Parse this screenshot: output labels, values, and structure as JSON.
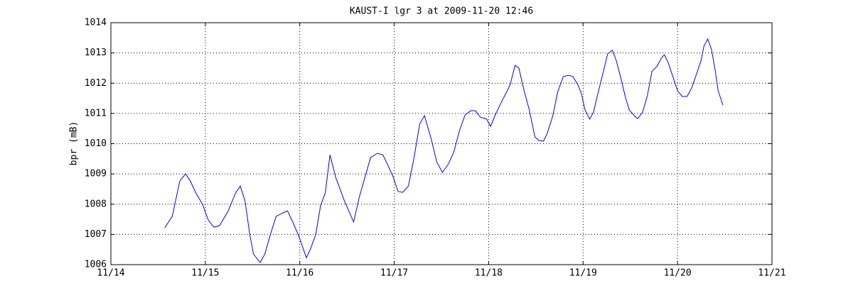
{
  "chart_data": {
    "type": "line",
    "title": "KAUST-I lgr 3 at 2009-11-20 12:46",
    "y_label": "bpr (mB)",
    "xlim": [
      14,
      21
    ],
    "xticks": [
      {
        "value": 14,
        "label": "11/14"
      },
      {
        "value": 15,
        "label": "11/15"
      },
      {
        "value": 16,
        "label": "11/16"
      },
      {
        "value": 17,
        "label": "11/17"
      },
      {
        "value": 18,
        "label": "11/18"
      },
      {
        "value": 19,
        "label": "11/19"
      },
      {
        "value": 20,
        "label": "11/20"
      },
      {
        "value": 21,
        "label": "11/21"
      }
    ],
    "ylim": [
      1006,
      1014
    ],
    "yticks": [
      1006,
      1007,
      1008,
      1009,
      1010,
      1011,
      1012,
      1013,
      1014
    ],
    "grid": true,
    "series": [
      {
        "color": "#0000ff",
        "x": [
          14.57,
          14.65,
          14.73,
          14.79,
          14.84,
          14.9,
          14.97,
          15.03,
          15.09,
          15.15,
          15.24,
          15.32,
          15.37,
          15.42,
          15.47,
          15.51,
          15.58,
          15.63,
          15.69,
          15.75,
          15.82,
          15.87,
          15.93,
          15.99,
          16.07,
          16.11,
          16.17,
          16.22,
          16.27,
          16.32,
          16.38,
          16.47,
          16.57,
          16.63,
          16.69,
          16.75,
          16.82,
          16.88,
          16.93,
          16.99,
          17.04,
          17.09,
          17.15,
          17.21,
          17.27,
          17.32,
          17.39,
          17.45,
          17.51,
          17.57,
          17.63,
          17.69,
          17.75,
          17.81,
          17.86,
          17.91,
          17.98,
          18.02,
          18.07,
          18.12,
          18.2,
          18.23,
          18.28,
          18.32,
          18.37,
          18.43,
          18.49,
          18.53,
          18.58,
          18.62,
          18.68,
          18.73,
          18.79,
          18.85,
          18.89,
          18.94,
          18.98,
          19.02,
          19.07,
          19.11,
          19.16,
          19.22,
          19.26,
          19.31,
          19.35,
          19.4,
          19.45,
          19.49,
          19.55,
          19.58,
          19.63,
          19.68,
          19.73,
          19.78,
          19.83,
          19.86,
          19.9,
          19.95,
          20.0,
          20.05,
          20.1,
          20.15,
          20.2,
          20.25,
          20.28,
          20.32,
          20.36,
          20.4,
          20.43,
          20.48
        ],
        "values": [
          1007.22,
          1007.6,
          1008.77,
          1009.0,
          1008.77,
          1008.37,
          1008.0,
          1007.48,
          1007.24,
          1007.29,
          1007.76,
          1008.37,
          1008.6,
          1008.11,
          1007.01,
          1006.35,
          1006.07,
          1006.35,
          1007.01,
          1007.6,
          1007.71,
          1007.78,
          1007.38,
          1006.94,
          1006.23,
          1006.49,
          1007.01,
          1007.95,
          1008.37,
          1009.63,
          1008.89,
          1008.13,
          1007.41,
          1008.23,
          1008.89,
          1009.54,
          1009.68,
          1009.63,
          1009.31,
          1008.89,
          1008.42,
          1008.39,
          1008.6,
          1009.54,
          1010.65,
          1010.93,
          1010.18,
          1009.4,
          1009.05,
          1009.31,
          1009.71,
          1010.42,
          1010.95,
          1011.09,
          1011.09,
          1010.88,
          1010.81,
          1010.57,
          1010.95,
          1011.28,
          1011.77,
          1011.98,
          1012.59,
          1012.5,
          1011.82,
          1011.12,
          1010.22,
          1010.11,
          1010.08,
          1010.34,
          1010.93,
          1011.7,
          1012.22,
          1012.26,
          1012.22,
          1011.98,
          1011.68,
          1011.12,
          1010.81,
          1011.04,
          1011.7,
          1012.45,
          1012.97,
          1013.09,
          1012.76,
          1012.17,
          1011.51,
          1011.11,
          1010.9,
          1010.83,
          1011.04,
          1011.58,
          1012.4,
          1012.55,
          1012.83,
          1012.94,
          1012.69,
          1012.22,
          1011.75,
          1011.56,
          1011.56,
          1011.84,
          1012.29,
          1012.76,
          1013.23,
          1013.46,
          1013.11,
          1012.4,
          1011.75,
          1011.28
        ]
      }
    ]
  }
}
